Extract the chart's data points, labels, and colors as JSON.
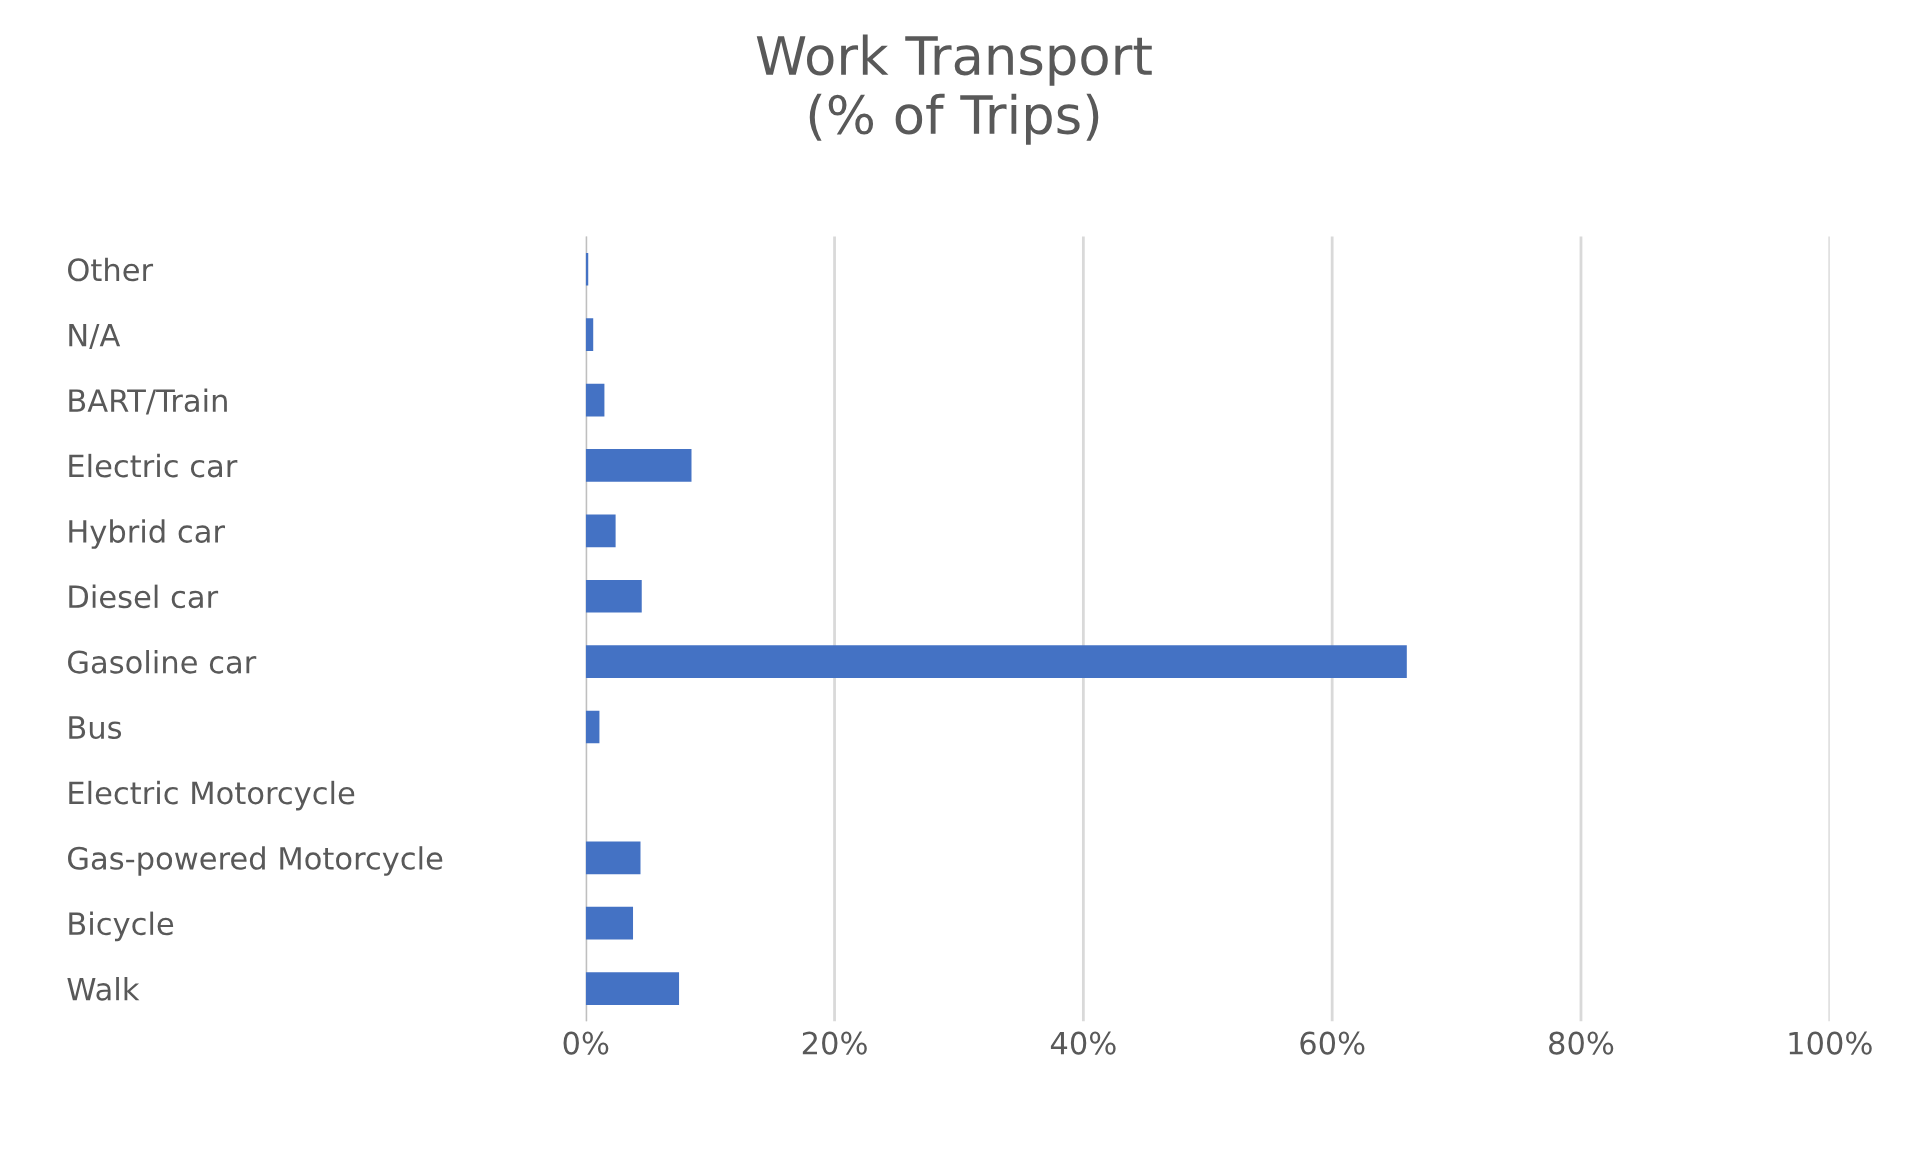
{
  "chart_data": {
    "type": "bar",
    "orientation": "horizontal",
    "title": "Work Transport\n(% of Trips)",
    "categories": [
      "Other",
      "N/A",
      "BART/Train",
      "Electric car",
      "Hybrid car",
      "Diesel car",
      "Gasoline car",
      "Bus",
      "Electric Motorcycle",
      "Gas-powered Motorcycle",
      "Bicycle",
      "Walk"
    ],
    "values": [
      0.2,
      0.6,
      1.5,
      8.5,
      2.4,
      4.5,
      66,
      1.1,
      0,
      4.4,
      3.8,
      7.5
    ],
    "color": "#4472c4",
    "xlim": [
      0,
      100
    ],
    "xticks": [
      {
        "value": 0,
        "label": "0%"
      },
      {
        "value": 20,
        "label": "20%"
      },
      {
        "value": 40,
        "label": "40%"
      },
      {
        "value": 60,
        "label": "60%"
      },
      {
        "value": 80,
        "label": "80%"
      },
      {
        "value": 100,
        "label": "100%"
      }
    ],
    "grid": "x"
  }
}
